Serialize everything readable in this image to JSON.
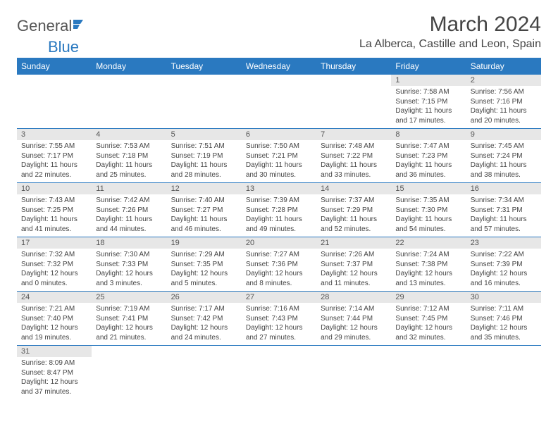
{
  "logo": {
    "general": "General",
    "blue": "Blue"
  },
  "title": "March 2024",
  "location": "La Alberca, Castille and Leon, Spain",
  "colors": {
    "header_bg": "#2a79c0",
    "header_text": "#ffffff",
    "daynum_bg": "#e7e7e7",
    "rule": "#2a79c0",
    "text": "#444444"
  },
  "font": {
    "family": "Arial",
    "title_size": 30,
    "location_size": 16,
    "day_header_size": 12,
    "daynum_size": 11,
    "cell_size": 10
  },
  "day_headers": [
    "Sunday",
    "Monday",
    "Tuesday",
    "Wednesday",
    "Thursday",
    "Friday",
    "Saturday"
  ],
  "weeks": [
    [
      null,
      null,
      null,
      null,
      null,
      {
        "n": "1",
        "sr": "Sunrise: 7:58 AM",
        "ss": "Sunset: 7:15 PM",
        "dl": "Daylight: 11 hours and 17 minutes."
      },
      {
        "n": "2",
        "sr": "Sunrise: 7:56 AM",
        "ss": "Sunset: 7:16 PM",
        "dl": "Daylight: 11 hours and 20 minutes."
      }
    ],
    [
      {
        "n": "3",
        "sr": "Sunrise: 7:55 AM",
        "ss": "Sunset: 7:17 PM",
        "dl": "Daylight: 11 hours and 22 minutes."
      },
      {
        "n": "4",
        "sr": "Sunrise: 7:53 AM",
        "ss": "Sunset: 7:18 PM",
        "dl": "Daylight: 11 hours and 25 minutes."
      },
      {
        "n": "5",
        "sr": "Sunrise: 7:51 AM",
        "ss": "Sunset: 7:19 PM",
        "dl": "Daylight: 11 hours and 28 minutes."
      },
      {
        "n": "6",
        "sr": "Sunrise: 7:50 AM",
        "ss": "Sunset: 7:21 PM",
        "dl": "Daylight: 11 hours and 30 minutes."
      },
      {
        "n": "7",
        "sr": "Sunrise: 7:48 AM",
        "ss": "Sunset: 7:22 PM",
        "dl": "Daylight: 11 hours and 33 minutes."
      },
      {
        "n": "8",
        "sr": "Sunrise: 7:47 AM",
        "ss": "Sunset: 7:23 PM",
        "dl": "Daylight: 11 hours and 36 minutes."
      },
      {
        "n": "9",
        "sr": "Sunrise: 7:45 AM",
        "ss": "Sunset: 7:24 PM",
        "dl": "Daylight: 11 hours and 38 minutes."
      }
    ],
    [
      {
        "n": "10",
        "sr": "Sunrise: 7:43 AM",
        "ss": "Sunset: 7:25 PM",
        "dl": "Daylight: 11 hours and 41 minutes."
      },
      {
        "n": "11",
        "sr": "Sunrise: 7:42 AM",
        "ss": "Sunset: 7:26 PM",
        "dl": "Daylight: 11 hours and 44 minutes."
      },
      {
        "n": "12",
        "sr": "Sunrise: 7:40 AM",
        "ss": "Sunset: 7:27 PM",
        "dl": "Daylight: 11 hours and 46 minutes."
      },
      {
        "n": "13",
        "sr": "Sunrise: 7:39 AM",
        "ss": "Sunset: 7:28 PM",
        "dl": "Daylight: 11 hours and 49 minutes."
      },
      {
        "n": "14",
        "sr": "Sunrise: 7:37 AM",
        "ss": "Sunset: 7:29 PM",
        "dl": "Daylight: 11 hours and 52 minutes."
      },
      {
        "n": "15",
        "sr": "Sunrise: 7:35 AM",
        "ss": "Sunset: 7:30 PM",
        "dl": "Daylight: 11 hours and 54 minutes."
      },
      {
        "n": "16",
        "sr": "Sunrise: 7:34 AM",
        "ss": "Sunset: 7:31 PM",
        "dl": "Daylight: 11 hours and 57 minutes."
      }
    ],
    [
      {
        "n": "17",
        "sr": "Sunrise: 7:32 AM",
        "ss": "Sunset: 7:32 PM",
        "dl": "Daylight: 12 hours and 0 minutes."
      },
      {
        "n": "18",
        "sr": "Sunrise: 7:30 AM",
        "ss": "Sunset: 7:33 PM",
        "dl": "Daylight: 12 hours and 3 minutes."
      },
      {
        "n": "19",
        "sr": "Sunrise: 7:29 AM",
        "ss": "Sunset: 7:35 PM",
        "dl": "Daylight: 12 hours and 5 minutes."
      },
      {
        "n": "20",
        "sr": "Sunrise: 7:27 AM",
        "ss": "Sunset: 7:36 PM",
        "dl": "Daylight: 12 hours and 8 minutes."
      },
      {
        "n": "21",
        "sr": "Sunrise: 7:26 AM",
        "ss": "Sunset: 7:37 PM",
        "dl": "Daylight: 12 hours and 11 minutes."
      },
      {
        "n": "22",
        "sr": "Sunrise: 7:24 AM",
        "ss": "Sunset: 7:38 PM",
        "dl": "Daylight: 12 hours and 13 minutes."
      },
      {
        "n": "23",
        "sr": "Sunrise: 7:22 AM",
        "ss": "Sunset: 7:39 PM",
        "dl": "Daylight: 12 hours and 16 minutes."
      }
    ],
    [
      {
        "n": "24",
        "sr": "Sunrise: 7:21 AM",
        "ss": "Sunset: 7:40 PM",
        "dl": "Daylight: 12 hours and 19 minutes."
      },
      {
        "n": "25",
        "sr": "Sunrise: 7:19 AM",
        "ss": "Sunset: 7:41 PM",
        "dl": "Daylight: 12 hours and 21 minutes."
      },
      {
        "n": "26",
        "sr": "Sunrise: 7:17 AM",
        "ss": "Sunset: 7:42 PM",
        "dl": "Daylight: 12 hours and 24 minutes."
      },
      {
        "n": "27",
        "sr": "Sunrise: 7:16 AM",
        "ss": "Sunset: 7:43 PM",
        "dl": "Daylight: 12 hours and 27 minutes."
      },
      {
        "n": "28",
        "sr": "Sunrise: 7:14 AM",
        "ss": "Sunset: 7:44 PM",
        "dl": "Daylight: 12 hours and 29 minutes."
      },
      {
        "n": "29",
        "sr": "Sunrise: 7:12 AM",
        "ss": "Sunset: 7:45 PM",
        "dl": "Daylight: 12 hours and 32 minutes."
      },
      {
        "n": "30",
        "sr": "Sunrise: 7:11 AM",
        "ss": "Sunset: 7:46 PM",
        "dl": "Daylight: 12 hours and 35 minutes."
      }
    ],
    [
      {
        "n": "31",
        "sr": "Sunrise: 8:09 AM",
        "ss": "Sunset: 8:47 PM",
        "dl": "Daylight: 12 hours and 37 minutes."
      },
      null,
      null,
      null,
      null,
      null,
      null
    ]
  ]
}
